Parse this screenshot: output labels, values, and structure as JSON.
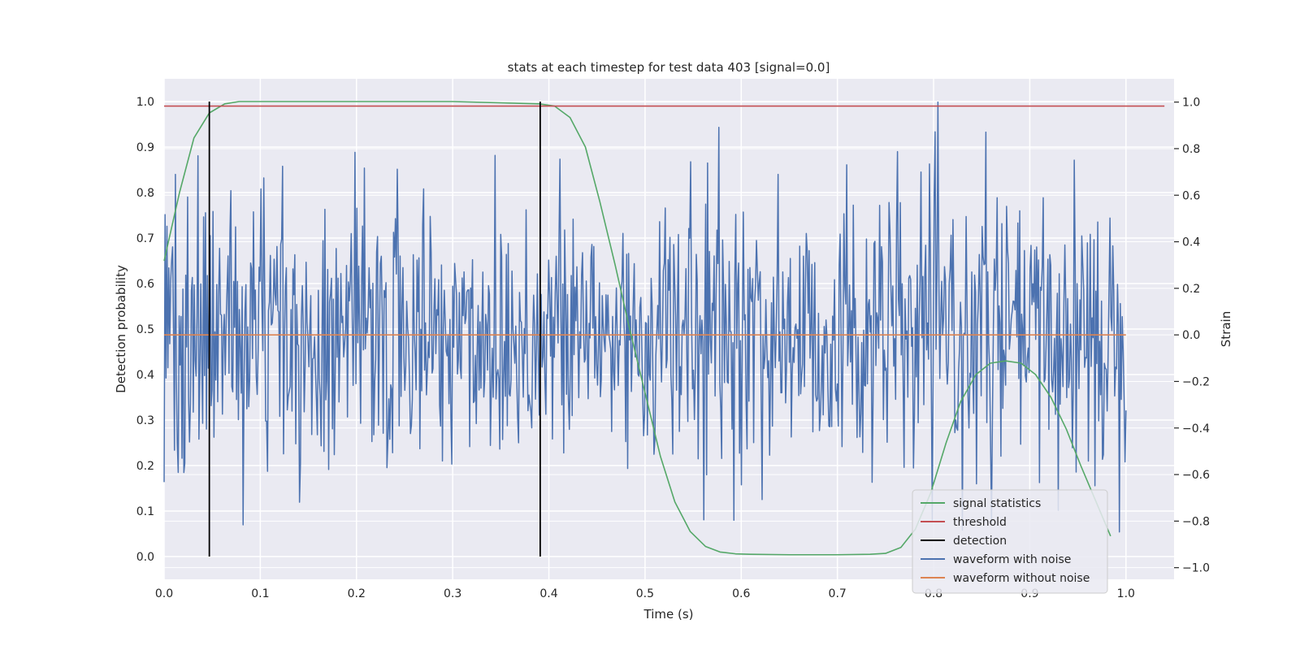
{
  "chart_data": {
    "type": "line",
    "title": "stats at each timestep for test data 403 [signal=0.0]",
    "xlabel": "Time (s)",
    "ylabel": "Detection probability",
    "y2label": "Strain",
    "xlim": [
      0.0,
      1.05
    ],
    "ylim": [
      -0.05,
      1.05
    ],
    "y2lim": [
      -1.05,
      1.1
    ],
    "xticks": [
      "0.0",
      "0.1",
      "0.2",
      "0.3",
      "0.4",
      "0.5",
      "0.6",
      "0.7",
      "0.8",
      "0.9",
      "1.0"
    ],
    "yticks": [
      "0.0",
      "0.1",
      "0.2",
      "0.3",
      "0.4",
      "0.5",
      "0.6",
      "0.7",
      "0.8",
      "0.9",
      "1.0"
    ],
    "y2ticks": [
      "−1.0",
      "−0.8",
      "−0.6",
      "−0.4",
      "−0.2",
      "0.0",
      "0.2",
      "0.4",
      "0.6",
      "0.8",
      "1.0"
    ],
    "grid": true,
    "legend_position": "lower-right",
    "series": [
      {
        "name": "signal statistics",
        "axis": "left",
        "color": "#55a868",
        "x": [
          0.0,
          0.016,
          0.031,
          0.047,
          0.063,
          0.078,
          0.094,
          0.2,
          0.3,
          0.39,
          0.406,
          0.422,
          0.438,
          0.453,
          0.469,
          0.484,
          0.5,
          0.516,
          0.531,
          0.547,
          0.563,
          0.578,
          0.594,
          0.609,
          0.65,
          0.7,
          0.734,
          0.75,
          0.766,
          0.781,
          0.797,
          0.813,
          0.828,
          0.844,
          0.859,
          0.875,
          0.891,
          0.906,
          0.922,
          0.938,
          0.953,
          0.969,
          0.984
        ],
        "y": [
          0.65,
          0.8,
          0.92,
          0.975,
          0.995,
          1.0,
          1.0,
          1.0,
          1.0,
          0.995,
          0.99,
          0.965,
          0.9,
          0.78,
          0.64,
          0.5,
          0.36,
          0.22,
          0.12,
          0.055,
          0.022,
          0.01,
          0.006,
          0.005,
          0.004,
          0.004,
          0.005,
          0.007,
          0.02,
          0.06,
          0.14,
          0.25,
          0.34,
          0.4,
          0.425,
          0.43,
          0.425,
          0.4,
          0.35,
          0.28,
          0.2,
          0.12,
          0.045
        ]
      },
      {
        "name": "threshold",
        "axis": "left",
        "color": "#c44e52",
        "x": [
          0.0,
          1.04
        ],
        "y": [
          0.99,
          0.99
        ]
      },
      {
        "name": "detection",
        "axis": "left",
        "color": "#000000",
        "x": [
          0.047,
          0.391
        ],
        "y": [
          1.0,
          1.0
        ],
        "style": "vertical-lines"
      },
      {
        "name": "waveform with noise",
        "axis": "right",
        "color": "#4c72b0",
        "x_range": [
          0.0,
          1.0
        ],
        "amplitude_range": [
          -1.0,
          1.0
        ],
        "points": 1024,
        "style": "noise"
      },
      {
        "name": "waveform without noise",
        "axis": "right",
        "color": "#dd8452",
        "x": [
          0.0,
          1.0
        ],
        "y": [
          0.0,
          0.0
        ]
      }
    ]
  }
}
